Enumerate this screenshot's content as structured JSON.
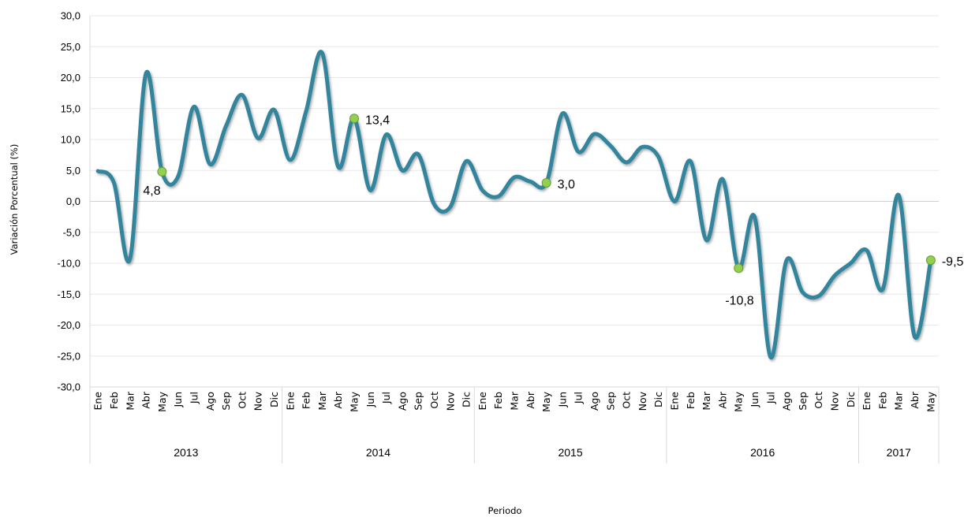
{
  "chart_data": {
    "type": "line",
    "title": "",
    "xlabel": "Periodo",
    "ylabel": "Variación Porcentual (%)",
    "ylim": [
      -30,
      30
    ],
    "yticks": [
      "30,0",
      "25,0",
      "20,0",
      "15,0",
      "10,0",
      "5,0",
      "0,0",
      "-5,0",
      "-10,0",
      "-15,0",
      "-20,0",
      "-25,0",
      "-30,0"
    ],
    "grid": true,
    "line_color": "#31859c",
    "marker_color": "#92d050",
    "years": [
      {
        "label": "2013",
        "months": [
          "Ene",
          "Feb",
          "Mar",
          "Abr",
          "May",
          "Jun",
          "Jul",
          "Ago",
          "Sep",
          "Oct",
          "Nov",
          "Dic"
        ]
      },
      {
        "label": "2014",
        "months": [
          "Ene",
          "Feb",
          "Mar",
          "Abr",
          "May",
          "Jun",
          "Jul",
          "Ago",
          "Sep",
          "Oct",
          "Nov",
          "Dic"
        ]
      },
      {
        "label": "2015",
        "months": [
          "Ene",
          "Feb",
          "Mar",
          "Abr",
          "May",
          "Jun",
          "Jul",
          "Ago",
          "Sep",
          "Oct",
          "Nov",
          "Dic"
        ]
      },
      {
        "label": "2016",
        "months": [
          "Ene",
          "Feb",
          "Mar",
          "Abr",
          "May",
          "Jun",
          "Jul",
          "Ago",
          "Sep",
          "Oct",
          "Nov",
          "Dic"
        ]
      },
      {
        "label": "2017",
        "months": [
          "Ene",
          "Feb",
          "Mar",
          "Abr",
          "May"
        ]
      }
    ],
    "series": [
      {
        "values": [
          4.9,
          3.0,
          -9.3,
          20.7,
          4.8,
          4.0,
          15.3,
          6.0,
          12.2,
          17.2,
          10.2,
          14.8,
          6.7,
          14.6,
          24.0,
          5.6,
          13.4,
          1.8,
          10.8,
          5.0,
          7.6,
          -0.5,
          -0.9,
          6.5,
          1.8,
          0.8,
          3.9,
          3.2,
          3.0,
          14.2,
          8.0,
          10.9,
          9.0,
          6.3,
          8.8,
          7.2,
          0.0,
          6.5,
          -6.3,
          3.6,
          -10.8,
          -2.5,
          -25.2,
          -9.5,
          -14.7,
          -15.3,
          -12.0,
          -10.0,
          -7.9,
          -14.2,
          1.0,
          -21.9,
          -9.5
        ]
      }
    ],
    "highlighted_points": [
      {
        "index": 4,
        "label": "4,8"
      },
      {
        "index": 16,
        "label": "13,4"
      },
      {
        "index": 28,
        "label": "3,0"
      },
      {
        "index": 40,
        "label": "-10,8"
      },
      {
        "index": 52,
        "label": "-9,5"
      }
    ]
  }
}
